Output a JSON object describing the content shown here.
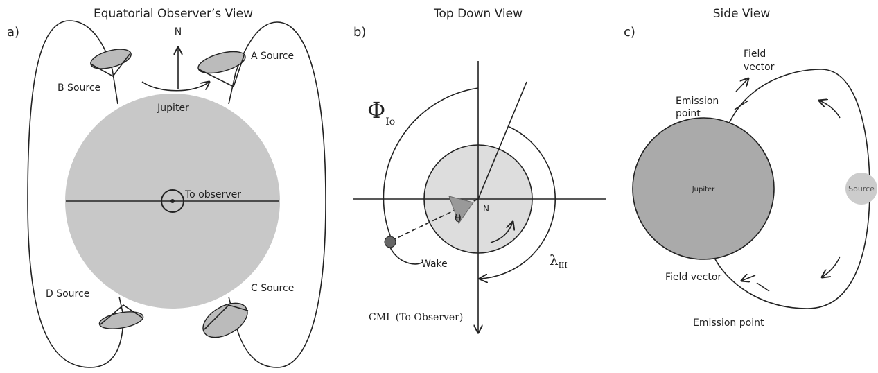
{
  "panels": [
    {
      "label": "a)",
      "title": "Equatorial Observer’s View",
      "texts": [
        "N",
        "A Source",
        "B Source",
        "Jupiter",
        "To observer",
        "D Source",
        "C Source"
      ]
    },
    {
      "label": "b)",
      "title": "Top Down View",
      "texts": [
        "Φ",
        "Io",
        "θ",
        "N",
        "λ",
        "III",
        "Wake",
        "CML (To Observer)"
      ]
    },
    {
      "label": "c)",
      "title": "Side View",
      "texts": [
        "Field",
        "vector",
        "Emission",
        "point",
        "Jupiter",
        "Source",
        "Field vector",
        "Emission point"
      ]
    }
  ]
}
